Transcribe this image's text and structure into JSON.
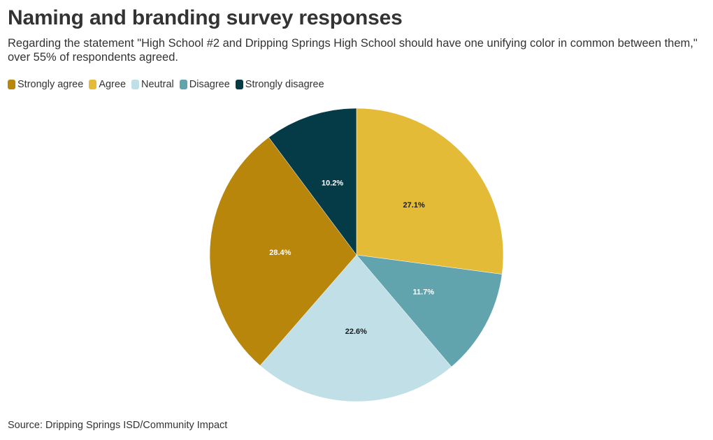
{
  "chart_data": {
    "type": "pie",
    "title": "Naming and branding survey responses",
    "subtitle": "Regarding the statement \"High School #2 and Dripping Springs High School should have one unifying color in common between them,\" over 55% of respondents agreed.",
    "source": "Source: Dripping Springs ISD/Community Impact",
    "legend_placement": "top-left",
    "slices": [
      {
        "name": "Agree",
        "value": 27.1,
        "label": "27.1%",
        "color": "#e3bb37",
        "label_color": "#1a1a1a"
      },
      {
        "name": "Disagree",
        "value": 11.7,
        "label": "11.7%",
        "color": "#62a4ae",
        "label_color": "#ffffff"
      },
      {
        "name": "Neutral",
        "value": 22.6,
        "label": "22.6%",
        "color": "#c1dfe6",
        "label_color": "#1a1a1a"
      },
      {
        "name": "Strongly agree",
        "value": 28.4,
        "label": "28.4%",
        "color": "#b8860b",
        "label_color": "#ffffff"
      },
      {
        "name": "Strongly disagree",
        "value": 10.2,
        "label": "10.2%",
        "color": "#053a47",
        "label_color": "#ffffff"
      }
    ],
    "legend": [
      {
        "name": "Strongly agree",
        "color": "#b8860b"
      },
      {
        "name": "Agree",
        "color": "#e3bb37"
      },
      {
        "name": "Neutral",
        "color": "#c1dfe6"
      },
      {
        "name": "Disagree",
        "color": "#62a4ae"
      },
      {
        "name": "Strongly disagree",
        "color": "#053a47"
      }
    ]
  }
}
